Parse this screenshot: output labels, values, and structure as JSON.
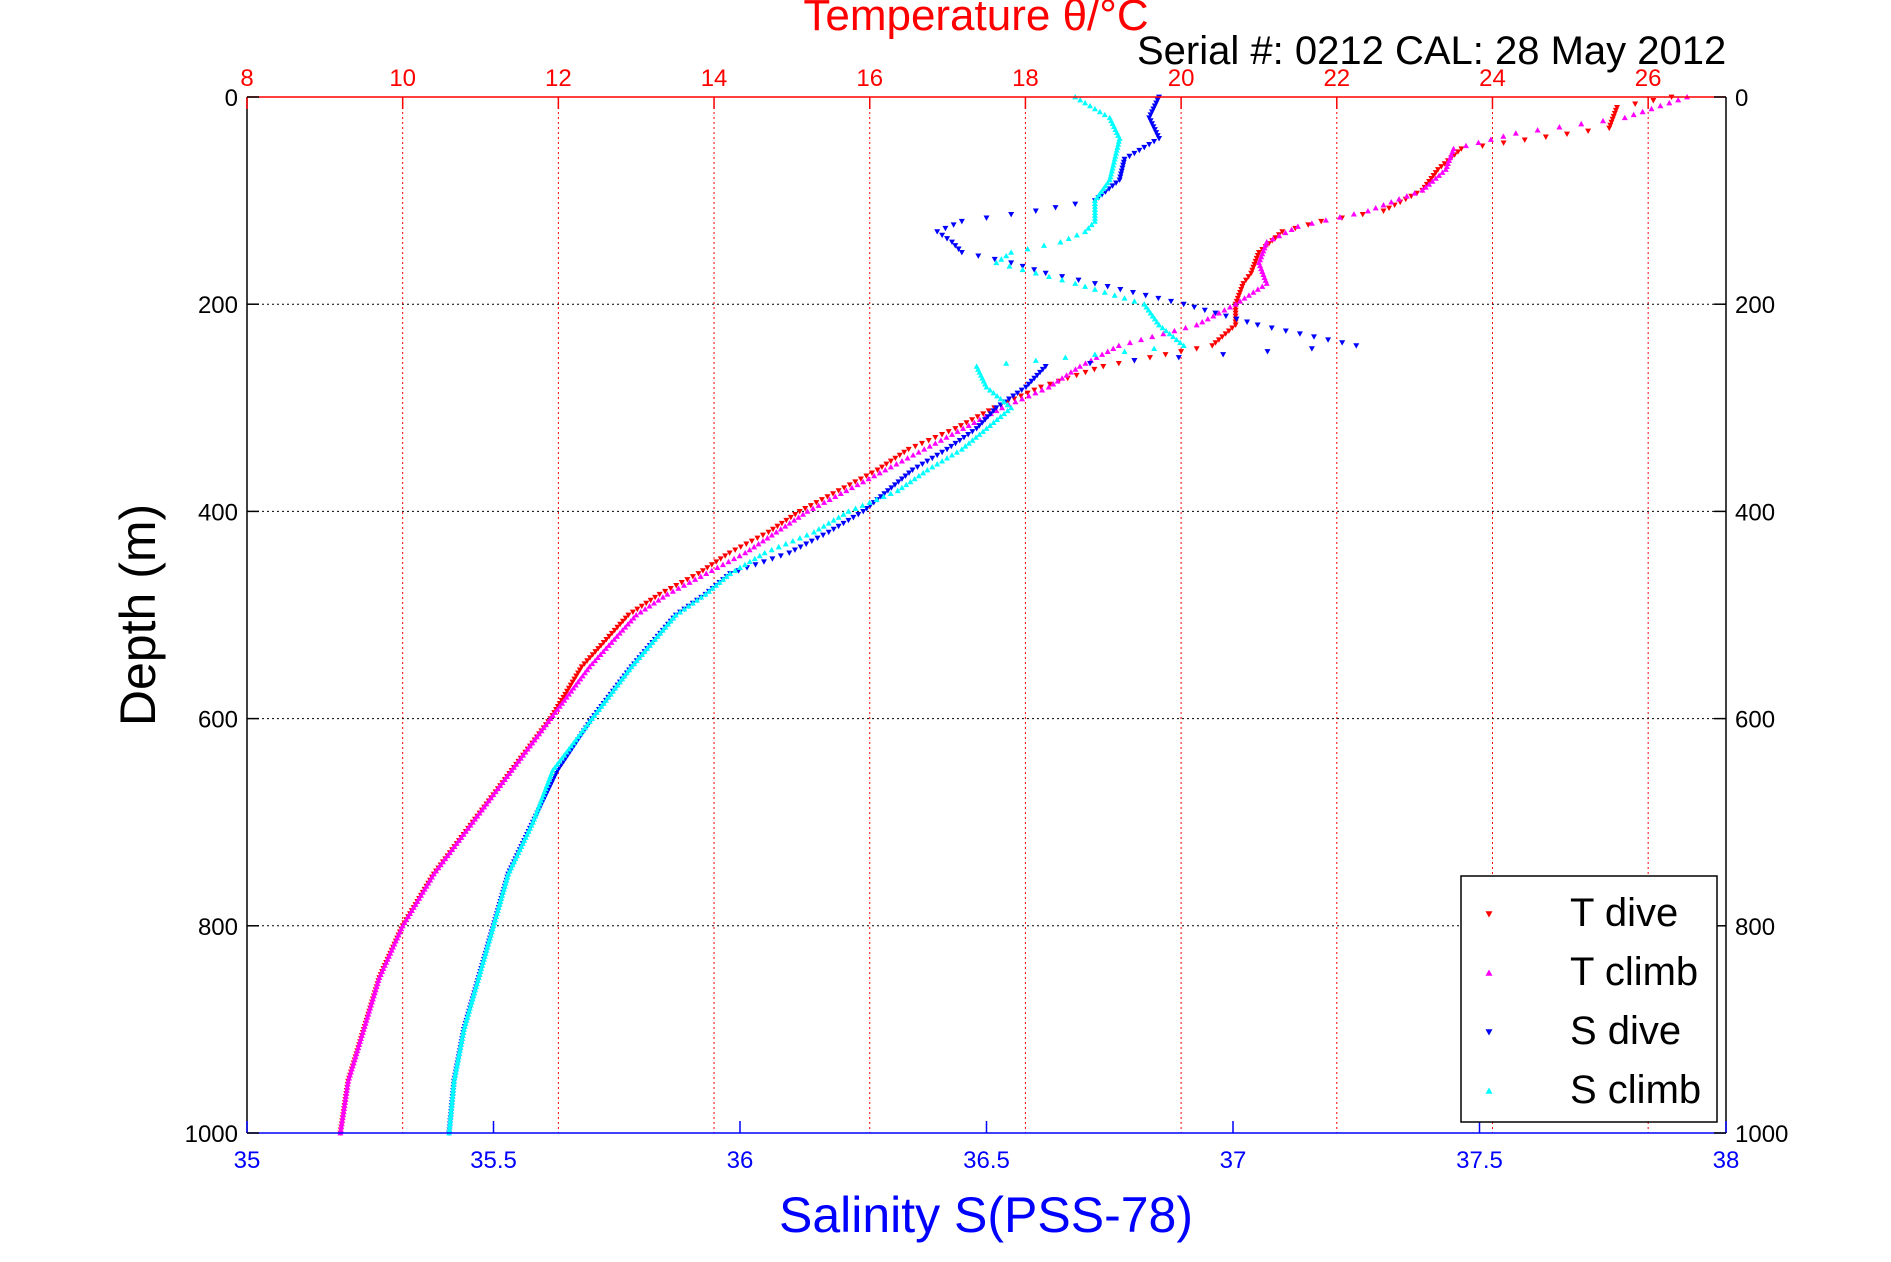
{
  "chart_data": {
    "type": "scatter",
    "title": "Temperature θ/°C",
    "subtitle": "Serial #: 0212  CAL: 28 May 2012",
    "xlabel": "Salinity S(PSS-78)",
    "ylabel": "Depth (m)",
    "x_top_ticks": [
      "8",
      "10",
      "12",
      "14",
      "16",
      "18",
      "20",
      "22",
      "24",
      "26"
    ],
    "x_bottom_ticks": [
      "35",
      "35.5",
      "36",
      "36.5",
      "37",
      "37.5",
      "38"
    ],
    "y_ticks": [
      "0",
      "200",
      "400",
      "600",
      "800",
      "1000"
    ],
    "temperature_lim": [
      8,
      27
    ],
    "salinity_lim": [
      35,
      38
    ],
    "ylim": [
      1000,
      0
    ],
    "grid": true,
    "legend_position": "bottom-right",
    "colors": {
      "t_dive": "#ff0000",
      "t_climb": "#ff00ff",
      "s_dive": "#0000ff",
      "s_climb": "#00ffff",
      "top_axis": "#ff0000",
      "bottom_axis": "#0000ff"
    },
    "series": [
      {
        "name": "T dive",
        "axis": "temperature",
        "marker": "triangle-down",
        "depth": [
          0,
          10,
          30,
          50,
          70,
          90,
          110,
          120,
          130,
          150,
          170,
          180,
          200,
          220,
          240,
          260,
          280,
          300,
          320,
          340,
          360,
          380,
          400,
          420,
          440,
          460,
          480,
          500,
          550,
          600,
          650,
          700,
          750,
          800,
          850,
          900,
          950,
          1000
        ],
        "values": [
          26.3,
          25.6,
          25.5,
          23.6,
          23.3,
          23.1,
          22.6,
          21.8,
          21.3,
          21.0,
          20.9,
          20.8,
          20.7,
          20.7,
          20.4,
          19.0,
          18.2,
          17.6,
          17.1,
          16.5,
          16.1,
          15.6,
          15.1,
          14.7,
          14.2,
          13.8,
          13.3,
          12.9,
          12.3,
          11.9,
          11.4,
          10.9,
          10.4,
          10.0,
          9.7,
          9.5,
          9.3,
          9.2
        ]
      },
      {
        "name": "T climb",
        "axis": "temperature",
        "marker": "triangle-up",
        "depth": [
          0,
          20,
          35,
          50,
          70,
          90,
          110,
          125,
          140,
          160,
          180,
          200,
          220,
          240,
          260,
          280,
          300,
          320,
          340,
          360,
          380,
          400,
          420,
          440,
          460,
          480,
          500,
          550,
          600,
          650,
          700,
          750,
          800,
          850,
          900,
          950,
          1000
        ],
        "values": [
          26.5,
          25.7,
          24.3,
          23.5,
          23.4,
          23.1,
          22.4,
          21.5,
          21.1,
          21.0,
          21.1,
          20.7,
          20.2,
          19.2,
          18.7,
          18.3,
          17.7,
          17.2,
          16.7,
          16.2,
          15.7,
          15.2,
          14.8,
          14.4,
          13.9,
          13.4,
          13.0,
          12.4,
          11.9,
          11.4,
          10.9,
          10.4,
          10.0,
          9.7,
          9.5,
          9.3,
          9.2
        ]
      },
      {
        "name": "S dive",
        "axis": "salinity",
        "marker": "triangle-down",
        "depth": [
          0,
          20,
          40,
          60,
          80,
          100,
          110,
          120,
          130,
          140,
          150,
          160,
          170,
          180,
          200,
          220,
          240,
          260,
          280,
          300,
          320,
          340,
          360,
          380,
          400,
          420,
          440,
          460,
          480,
          500,
          550,
          600,
          650,
          700,
          750,
          800,
          850,
          900,
          950,
          1000
        ],
        "values": [
          36.85,
          36.83,
          36.85,
          36.78,
          36.77,
          36.72,
          36.6,
          36.45,
          36.4,
          36.43,
          36.45,
          36.55,
          36.62,
          36.72,
          36.9,
          37.05,
          37.25,
          36.62,
          36.58,
          36.52,
          36.48,
          36.42,
          36.35,
          36.3,
          36.25,
          36.18,
          36.1,
          35.98,
          35.93,
          35.87,
          35.78,
          35.7,
          35.63,
          35.58,
          35.53,
          35.5,
          35.47,
          35.44,
          35.42,
          35.41
        ]
      },
      {
        "name": "S climb",
        "axis": "salinity",
        "marker": "triangle-up",
        "depth": [
          0,
          20,
          40,
          60,
          80,
          100,
          120,
          130,
          140,
          150,
          160,
          170,
          180,
          200,
          220,
          240,
          260,
          280,
          300,
          320,
          340,
          360,
          380,
          400,
          420,
          440,
          460,
          480,
          500,
          550,
          600,
          650,
          700,
          750,
          800,
          850,
          900,
          950,
          1000
        ],
        "values": [
          36.68,
          36.75,
          36.77,
          36.76,
          36.75,
          36.72,
          36.72,
          36.7,
          36.65,
          36.55,
          36.52,
          36.6,
          36.68,
          36.82,
          36.85,
          36.9,
          36.48,
          36.5,
          36.55,
          36.5,
          36.45,
          36.38,
          36.32,
          36.22,
          36.15,
          36.05,
          35.98,
          35.93,
          35.87,
          35.78,
          35.7,
          35.62,
          35.58,
          35.53,
          35.5,
          35.47,
          35.44,
          35.42,
          35.41
        ]
      }
    ]
  }
}
